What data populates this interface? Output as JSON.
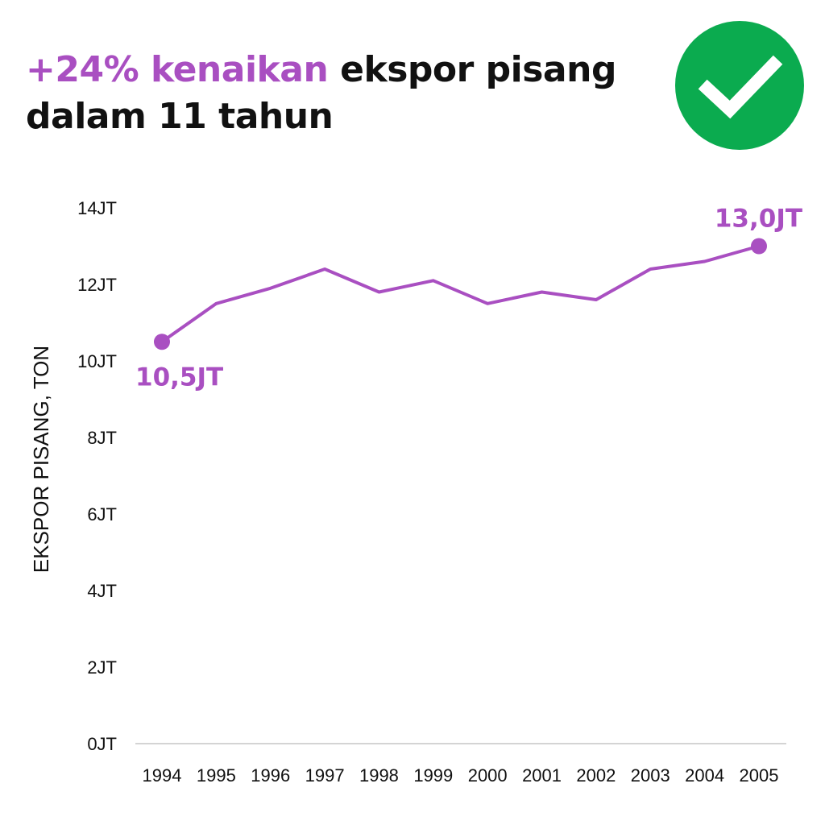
{
  "header": {
    "title_highlight": "+24% kenaikan",
    "title_rest": " ekspor pisang dalam 11 tahun",
    "badge_icon": "checkmark-icon",
    "badge_color": "#0bab4f"
  },
  "chart_data": {
    "type": "line",
    "title": "+24% kenaikan ekspor pisang dalam 11 tahun",
    "xlabel": "",
    "ylabel": "EKSPOR PISANG, TON",
    "categories": [
      "1994",
      "1995",
      "1996",
      "1997",
      "1998",
      "1999",
      "2000",
      "2001",
      "2002",
      "2003",
      "2004",
      "2005"
    ],
    "series": [
      {
        "values": [
          10.5,
          11.5,
          11.9,
          12.4,
          11.8,
          12.1,
          11.5,
          11.8,
          11.6,
          12.4,
          12.6,
          13.0
        ],
        "color": "#a94fc1"
      }
    ],
    "ylim": [
      0,
      14
    ],
    "yticks": [
      0,
      2,
      4,
      6,
      8,
      10,
      12,
      14
    ],
    "ytick_labels": [
      "0JT",
      "2JT",
      "4JT",
      "6JT",
      "8JT",
      "10JT",
      "12JT",
      "14JT"
    ],
    "annotations": [
      {
        "index": 0,
        "text": "10,5JT"
      },
      {
        "index": 11,
        "text": "13,0JT"
      }
    ],
    "grid": false,
    "legend": "none"
  }
}
